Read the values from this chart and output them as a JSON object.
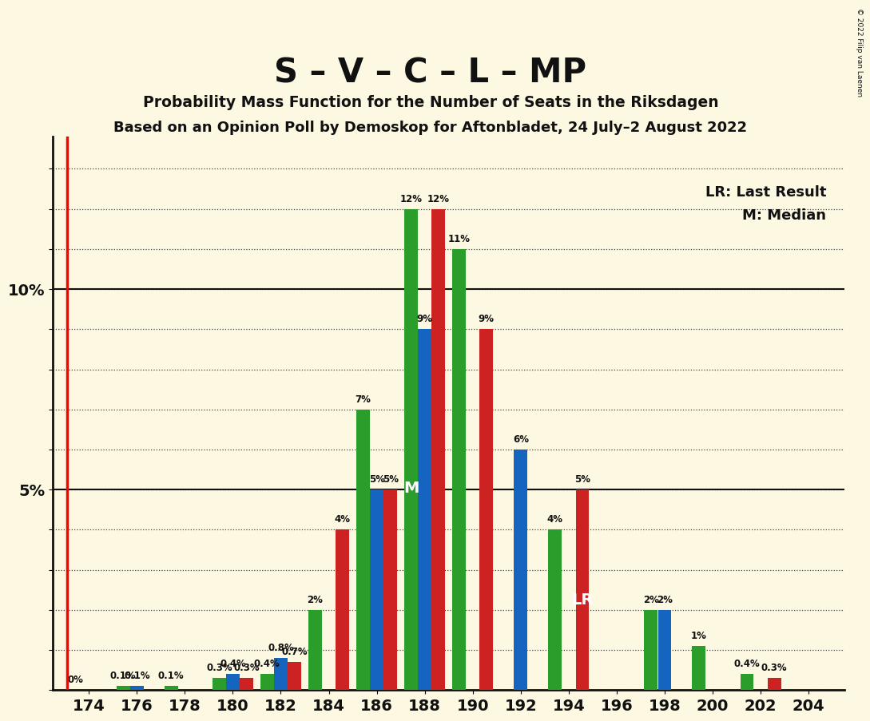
{
  "title": "S – V – C – L – MP",
  "subtitle1": "Probability Mass Function for the Number of Seats in the Riksdagen",
  "subtitle2": "Based on an Opinion Poll by Demoskop for Aftonbladet, 24 July–2 August 2022",
  "copyright": "© 2022 Filip van Laenen",
  "legend1": "LR: Last Result",
  "legend2": "M: Median",
  "background_color": "#fdf8e1",
  "seats": [
    174,
    176,
    178,
    180,
    182,
    184,
    186,
    188,
    190,
    192,
    194,
    196,
    198,
    200,
    202,
    204
  ],
  "green_values": [
    0.0,
    0.1,
    0.1,
    0.3,
    0.4,
    2.0,
    7.0,
    12.0,
    11.0,
    0.0,
    4.0,
    0.0,
    2.0,
    1.1,
    0.4,
    0.0
  ],
  "blue_values": [
    0.0,
    0.1,
    0.0,
    0.4,
    0.8,
    0.0,
    5.0,
    9.0,
    0.0,
    6.0,
    0.0,
    0.0,
    2.0,
    0.0,
    0.0,
    0.0
  ],
  "red_values": [
    0.0,
    0.0,
    0.0,
    0.3,
    0.7,
    4.0,
    5.0,
    12.0,
    9.0,
    0.0,
    5.0,
    0.0,
    0.0,
    0.0,
    0.3,
    0.0
  ],
  "green_color": "#2a9d2a",
  "blue_color": "#1565c0",
  "red_color": "#cc2222",
  "axis_color": "#111111",
  "grid_color": "#444444",
  "lr_seat": 194,
  "median_seat": 188,
  "label_color_on_bar": "#ffffff",
  "ytick_labels": [
    "",
    "",
    "",
    "",
    "",
    "5%",
    "",
    "",
    "",
    "",
    "10%",
    "",
    "",
    ""
  ],
  "ytick_values": [
    0,
    1,
    2,
    3,
    4,
    5,
    6,
    7,
    8,
    9,
    10,
    11,
    12,
    13
  ],
  "ylim": [
    0,
    13.8
  ],
  "bar_label_fontsize": 8.5,
  "show_green": [
    true,
    true,
    true,
    true,
    true,
    true,
    true,
    true,
    true,
    false,
    true,
    false,
    true,
    true,
    true,
    false
  ],
  "show_blue": [
    false,
    true,
    false,
    true,
    true,
    false,
    true,
    true,
    false,
    true,
    false,
    false,
    true,
    false,
    false,
    false
  ],
  "show_red": [
    false,
    false,
    false,
    true,
    true,
    true,
    true,
    true,
    true,
    false,
    true,
    false,
    false,
    false,
    true,
    false
  ]
}
